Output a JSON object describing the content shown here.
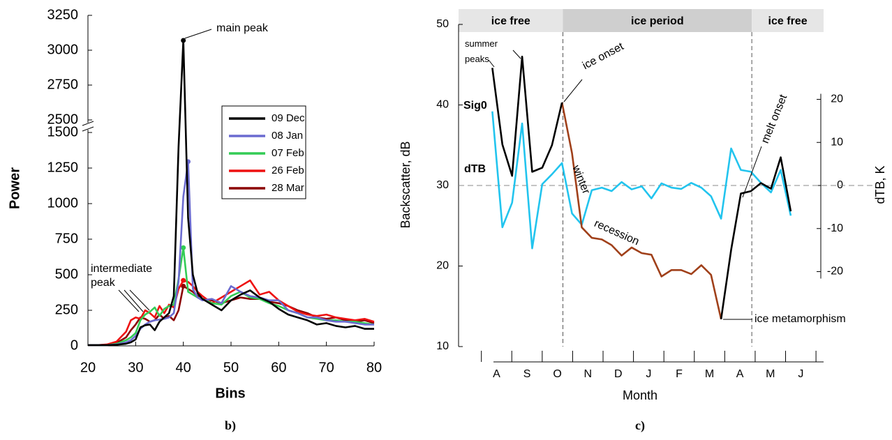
{
  "chart_data": [
    {
      "type": "line",
      "caption": "b)",
      "xlabel": "Bins",
      "ylabel": "Power",
      "x": [
        20,
        22,
        24,
        26,
        28,
        29,
        30,
        31,
        32,
        33,
        34,
        35,
        36,
        37,
        38,
        39,
        40,
        41,
        42,
        43,
        44,
        46,
        48,
        50,
        52,
        54,
        56,
        58,
        60,
        62,
        64,
        66,
        68,
        70,
        72,
        74,
        76,
        78,
        80
      ],
      "xlim": [
        20,
        80
      ],
      "xticks": [
        20,
        30,
        40,
        50,
        60,
        70,
        80
      ],
      "ylim": [
        0,
        3250
      ],
      "ybreak": [
        1500,
        2500
      ],
      "yticks": [
        0,
        250,
        500,
        750,
        1000,
        1250,
        1500,
        2500,
        2750,
        3000,
        3250
      ],
      "legend": "upper right",
      "series": [
        {
          "name": "09 Dec",
          "color": "#000000",
          "values": [
            5,
            5,
            5,
            8,
            15,
            25,
            45,
            130,
            145,
            150,
            110,
            170,
            200,
            230,
            350,
            1400,
            3070,
            900,
            500,
            370,
            330,
            290,
            250,
            320,
            360,
            390,
            340,
            310,
            260,
            220,
            200,
            180,
            150,
            160,
            140,
            130,
            140,
            120,
            120
          ]
        },
        {
          "name": "08 Jan",
          "color": "#6b6bd0",
          "values": [
            5,
            5,
            5,
            10,
            25,
            40,
            70,
            120,
            150,
            170,
            180,
            185,
            190,
            200,
            230,
            450,
            1050,
            1295,
            400,
            340,
            320,
            330,
            300,
            420,
            380,
            350,
            340,
            320,
            320,
            250,
            230,
            200,
            200,
            180,
            170,
            170,
            160,
            150,
            150
          ]
        },
        {
          "name": "07 Feb",
          "color": "#33cc55",
          "values": [
            5,
            5,
            5,
            15,
            40,
            60,
            90,
            180,
            220,
            240,
            270,
            210,
            260,
            280,
            290,
            470,
            690,
            380,
            360,
            340,
            330,
            300,
            290,
            350,
            380,
            340,
            330,
            300,
            280,
            250,
            230,
            200,
            190,
            180,
            180,
            170,
            170,
            160,
            150
          ]
        },
        {
          "name": "26 Feb",
          "color": "#ee1111",
          "values": [
            5,
            5,
            10,
            30,
            100,
            180,
            200,
            190,
            250,
            230,
            200,
            280,
            230,
            290,
            270,
            400,
            460,
            450,
            420,
            380,
            350,
            300,
            340,
            380,
            420,
            460,
            360,
            380,
            320,
            280,
            240,
            220,
            210,
            220,
            200,
            190,
            180,
            190,
            170
          ]
        },
        {
          "name": "28 Mar",
          "color": "#8b0000",
          "values": [
            5,
            5,
            8,
            20,
            60,
            110,
            150,
            200,
            190,
            170,
            180,
            220,
            190,
            210,
            180,
            250,
            420,
            400,
            380,
            350,
            330,
            320,
            300,
            320,
            340,
            330,
            330,
            310,
            300,
            280,
            250,
            230,
            200,
            190,
            200,
            180,
            170,
            180,
            160
          ]
        }
      ],
      "annotations": [
        "main peak",
        "intermediate peak"
      ]
    },
    {
      "type": "line",
      "caption": "c)",
      "xlabel": "Month",
      "ylabel": "Backscatter, dB",
      "y2label": "dTB, K",
      "categories": [
        "A",
        "S",
        "O",
        "N",
        "D",
        "J",
        "F",
        "M",
        "A",
        "M",
        "J"
      ],
      "x": [
        -0.14,
        0.19,
        0.51,
        0.84,
        1.17,
        1.5,
        1.82,
        2.15,
        2.48,
        2.8,
        3.13,
        3.46,
        3.78,
        4.11,
        4.44,
        4.77,
        5.09,
        5.42,
        5.75,
        6.07,
        6.4,
        6.73,
        7.05,
        7.38,
        7.71,
        8.03,
        8.36,
        8.69,
        9.02,
        9.34,
        9.67
      ],
      "xlim": [
        -1.25,
        10.75
      ],
      "xticks": [
        -0.5,
        0.5,
        1.5,
        2.5,
        3.5,
        4.5,
        5.5,
        6.5,
        7.5,
        8.5,
        9.5,
        10.5
      ],
      "ylim": [
        10,
        50
      ],
      "yticks": [
        10,
        20,
        30,
        40,
        50
      ],
      "y2lim": [
        -37.4,
        37.4
      ],
      "y2ticks": [
        -20,
        -10,
        0,
        10,
        20
      ],
      "periods": [
        {
          "label": "ice free",
          "start": -1.25,
          "end": 2.18
        },
        {
          "label": "ice period",
          "start": 2.18,
          "end": 8.39
        },
        {
          "label": "ice free",
          "start": 8.39,
          "end": 10.75
        }
      ],
      "series": [
        {
          "name": "Sig0",
          "color": "#000000",
          "values": [
            44.6,
            35.1,
            31.2,
            46,
            31.7,
            32.2,
            35,
            40.3,
            null,
            null,
            null,
            null,
            null,
            null,
            null,
            null,
            null,
            null,
            null,
            null,
            null,
            null,
            null,
            13.4,
            22,
            29,
            29.3,
            30.3,
            29.6,
            33.5,
            26.8
          ]
        },
        {
          "color": "#a0401a",
          "values": [
            null,
            null,
            null,
            null,
            null,
            null,
            null,
            40.3,
            34,
            24.8,
            23.5,
            23.3,
            22.6,
            21.3,
            22.3,
            21.6,
            21.4,
            18.7,
            19.5,
            19.5,
            19.0,
            20.1,
            18.9,
            13.4,
            null,
            null,
            null,
            null,
            null,
            null,
            null
          ]
        },
        {
          "name": "dTB",
          "color": "#22c4ee",
          "axis": "y2",
          "values": [
            17.2,
            -9.7,
            -4,
            14.4,
            -14.6,
            0.3,
            2.6,
            5.2,
            -6.5,
            -9.1,
            -1.1,
            -0.5,
            -1.3,
            0.8,
            -0.9,
            -0.2,
            -3,
            0.5,
            -0.5,
            -0.8,
            0.6,
            -0.5,
            -2.5,
            -7.7,
            8.6,
            3.6,
            3.2,
            0.6,
            -1.6,
            3.6,
            -7
          ]
        }
      ],
      "annotations": [
        "summer peaks",
        "ice onset",
        "winter",
        "recession",
        "melt onset",
        "ice metamorphism"
      ]
    }
  ]
}
